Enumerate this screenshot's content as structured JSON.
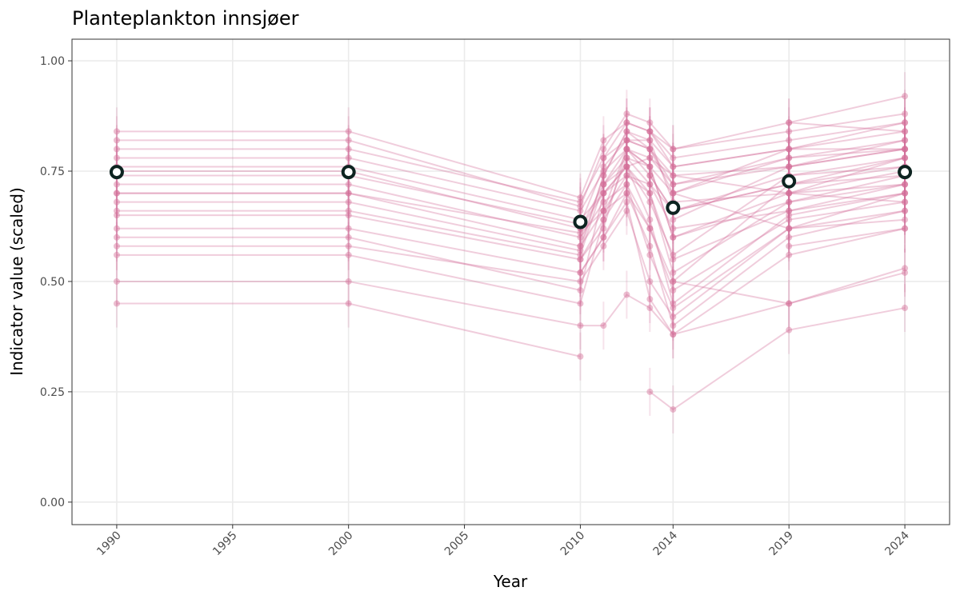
{
  "chart_data": {
    "type": "line",
    "title": "Planteplankton innsjøer",
    "xlabel": "Year",
    "ylabel": "Indicator value (scaled)",
    "xlim": [
      1988.07,
      2025.93
    ],
    "ylim": [
      -0.051,
      1.049
    ],
    "x_ticks": [
      1990,
      1995,
      2000,
      2005,
      2010,
      2014,
      2019,
      2024
    ],
    "y_ticks": [
      0.0,
      0.25,
      0.5,
      0.75,
      1.0
    ],
    "y_tick_labels": [
      "0.00",
      "0.25",
      "0.50",
      "0.75",
      "1.00"
    ],
    "x_tick_labels": [
      "1990",
      "1995",
      "2000",
      "2005",
      "2010",
      "2014",
      "2019",
      "2024"
    ],
    "grid": true,
    "line_color": "#d4709a",
    "median_stroke": "#0d2320",
    "median_fill": "#ffffff",
    "median": {
      "x": [
        1990,
        2000,
        2010,
        2014,
        2019,
        2024
      ],
      "y": [
        0.748,
        0.748,
        0.635,
        0.667,
        0.727,
        0.748
      ]
    },
    "series_x": [
      1990,
      2000,
      2010,
      2011,
      2012,
      2013,
      2014,
      2019,
      2024
    ],
    "series": [
      [
        0.8,
        0.8,
        0.68,
        0.78,
        0.82,
        0.8,
        0.7,
        0.78,
        0.8
      ],
      [
        0.75,
        0.75,
        0.62,
        0.72,
        0.78,
        0.76,
        0.6,
        0.7,
        0.75
      ],
      [
        0.7,
        0.7,
        0.58,
        0.66,
        0.74,
        0.7,
        0.52,
        0.68,
        0.72
      ],
      [
        0.65,
        0.65,
        0.55,
        0.62,
        0.8,
        0.74,
        0.66,
        0.74,
        0.78
      ],
      [
        0.6,
        0.6,
        0.48,
        0.7,
        0.76,
        0.64,
        0.45,
        0.65,
        0.7
      ],
      [
        0.45,
        0.45,
        0.33,
        null,
        null,
        null,
        null,
        null,
        null
      ],
      [
        0.5,
        0.5,
        0.4,
        0.4,
        0.47,
        0.44,
        0.38,
        0.45,
        0.52
      ],
      [
        0.84,
        0.84,
        0.69,
        0.82,
        0.86,
        0.84,
        0.78,
        0.82,
        0.86
      ],
      [
        0.78,
        0.78,
        0.66,
        0.75,
        0.8,
        0.78,
        0.72,
        0.76,
        0.82
      ],
      [
        0.72,
        0.72,
        0.6,
        0.68,
        0.72,
        0.62,
        0.5,
        0.72,
        0.74
      ],
      [
        0.68,
        0.68,
        0.57,
        0.74,
        0.84,
        0.8,
        0.74,
        0.7,
        0.68
      ],
      [
        0.62,
        0.62,
        0.52,
        0.6,
        0.7,
        0.58,
        0.4,
        0.6,
        0.66
      ],
      [
        0.56,
        0.56,
        0.45,
        0.64,
        0.78,
        0.72,
        0.62,
        0.66,
        0.7
      ],
      [
        0.82,
        0.82,
        0.67,
        0.8,
        0.88,
        0.86,
        0.8,
        0.86,
        0.92
      ],
      [
        0.74,
        0.74,
        0.63,
        0.76,
        0.82,
        0.82,
        0.76,
        0.8,
        0.84
      ],
      [
        0.66,
        0.66,
        0.56,
        0.72,
        0.76,
        0.68,
        0.56,
        0.74,
        0.76
      ],
      [
        0.58,
        0.58,
        0.5,
        0.58,
        0.66,
        0.5,
        0.42,
        0.62,
        0.64
      ],
      [
        0.76,
        0.76,
        0.64,
        0.7,
        0.74,
        0.72,
        0.66,
        0.72,
        0.78
      ],
      [
        0.7,
        0.7,
        0.61,
        0.66,
        0.8,
        0.76,
        0.7,
        0.8,
        0.8
      ],
      [
        null,
        null,
        0.62,
        0.7,
        0.76,
        0.78,
        0.74,
        0.76,
        0.8
      ],
      [
        null,
        null,
        0.58,
        0.74,
        0.84,
        0.82,
        0.68,
        0.7,
        0.72
      ],
      [
        null,
        null,
        0.55,
        0.64,
        0.72,
        0.56,
        0.44,
        0.62,
        0.7
      ],
      [
        null,
        null,
        0.52,
        0.6,
        0.68,
        0.46,
        0.38,
        0.56,
        0.62
      ],
      [
        null,
        null,
        null,
        0.78,
        0.86,
        0.84,
        0.8,
        0.84,
        0.88
      ],
      [
        null,
        null,
        null,
        0.72,
        0.8,
        0.76,
        0.6,
        0.68,
        0.74
      ],
      [
        null,
        null,
        null,
        0.66,
        0.7,
        0.62,
        0.48,
        0.64,
        0.68
      ],
      [
        null,
        null,
        null,
        null,
        0.82,
        0.8,
        0.72,
        0.78,
        0.82
      ],
      [
        null,
        null,
        null,
        null,
        0.76,
        0.7,
        0.55,
        0.66,
        0.72
      ],
      [
        null,
        null,
        null,
        null,
        null,
        0.25,
        0.21,
        0.39,
        0.44
      ],
      [
        null,
        null,
        null,
        null,
        null,
        0.84,
        0.76,
        0.8,
        0.86
      ],
      [
        null,
        null,
        null,
        null,
        null,
        0.74,
        0.66,
        0.72,
        0.76
      ],
      [
        null,
        null,
        null,
        null,
        null,
        null,
        0.64,
        0.76,
        0.8
      ],
      [
        null,
        null,
        null,
        null,
        null,
        null,
        0.5,
        0.45,
        0.53
      ],
      [
        null,
        null,
        null,
        null,
        null,
        null,
        0.7,
        0.62,
        0.66
      ],
      [
        null,
        null,
        null,
        null,
        null,
        null,
        null,
        0.86,
        0.84
      ],
      [
        null,
        null,
        null,
        null,
        null,
        null,
        null,
        0.7,
        0.78
      ],
      [
        null,
        null,
        null,
        null,
        null,
        null,
        null,
        0.58,
        0.62
      ]
    ]
  }
}
